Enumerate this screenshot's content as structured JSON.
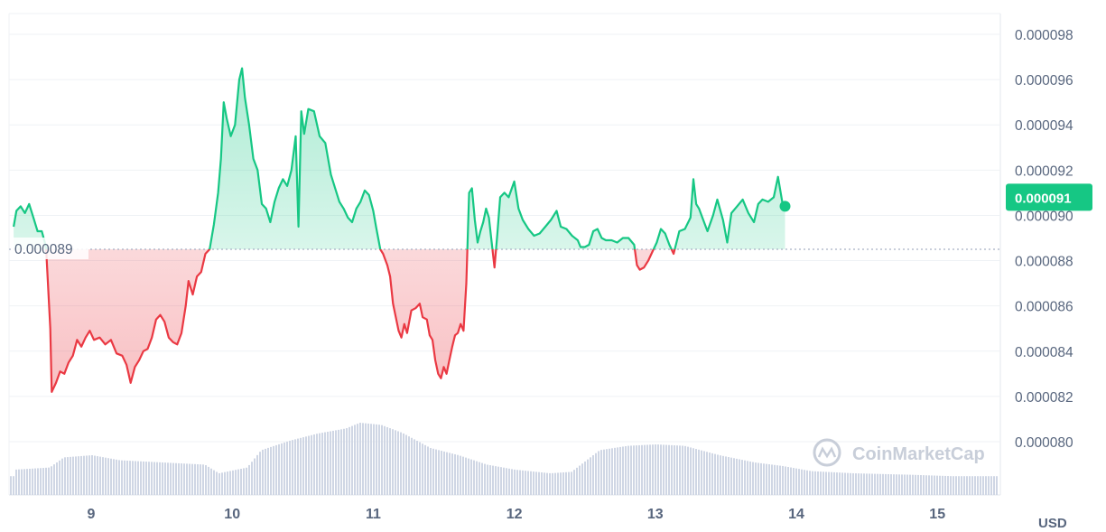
{
  "chart_data": {
    "type": "area",
    "x_tick_labels": [
      "9",
      "10",
      "11",
      "12",
      "13",
      "14",
      "15"
    ],
    "y_tick_labels": [
      "0.000098",
      "0.000096",
      "0.000094",
      "0.000092",
      "0.000090",
      "0.000088",
      "0.000086",
      "0.000084",
      "0.000082",
      "0.000080"
    ],
    "ylim": [
      7.8e-05,
      9.85e-05
    ],
    "xlim": [
      8.45,
      15.38
    ],
    "unit_label": "USD",
    "reference_value": 8.85e-05,
    "reference_label": "0.000089",
    "current_price_label": "0.000091",
    "current_price": 9.08e-05,
    "watermark": "CoinMarketCap",
    "colors": {
      "up": "#16c784",
      "down": "#ea3943",
      "volume": "#cfd6e4",
      "grid": "#eff2f5",
      "axis_text": "#58667e"
    },
    "price_series": [
      [
        8.45,
        8.95e-05
      ],
      [
        8.47,
        9.02e-05
      ],
      [
        8.5,
        9.04e-05
      ],
      [
        8.53,
        9.01e-05
      ],
      [
        8.56,
        9.05e-05
      ],
      [
        8.59,
        8.99e-05
      ],
      [
        8.62,
        8.93e-05
      ],
      [
        8.65,
        8.93e-05
      ],
      [
        8.68,
        8.86e-05
      ],
      [
        8.71,
        8.5e-05
      ],
      [
        8.72,
        8.22e-05
      ],
      [
        8.75,
        8.26e-05
      ],
      [
        8.78,
        8.31e-05
      ],
      [
        8.81,
        8.3e-05
      ],
      [
        8.84,
        8.35e-05
      ],
      [
        8.87,
        8.38e-05
      ],
      [
        8.9,
        8.45e-05
      ],
      [
        8.93,
        8.42e-05
      ],
      [
        8.96,
        8.46e-05
      ],
      [
        8.99,
        8.49e-05
      ],
      [
        9.02,
        8.45e-05
      ],
      [
        9.06,
        8.46e-05
      ],
      [
        9.1,
        8.43e-05
      ],
      [
        9.14,
        8.45e-05
      ],
      [
        9.18,
        8.39e-05
      ],
      [
        9.22,
        8.38e-05
      ],
      [
        9.25,
        8.34e-05
      ],
      [
        9.28,
        8.26e-05
      ],
      [
        9.31,
        8.33e-05
      ],
      [
        9.34,
        8.36e-05
      ],
      [
        9.37,
        8.4e-05
      ],
      [
        9.4,
        8.41e-05
      ],
      [
        9.43,
        8.46e-05
      ],
      [
        9.46,
        8.54e-05
      ],
      [
        9.49,
        8.56e-05
      ],
      [
        9.52,
        8.53e-05
      ],
      [
        9.55,
        8.46e-05
      ],
      [
        9.58,
        8.44e-05
      ],
      [
        9.61,
        8.43e-05
      ],
      [
        9.64,
        8.48e-05
      ],
      [
        9.67,
        8.6e-05
      ],
      [
        9.69,
        8.71e-05
      ],
      [
        9.72,
        8.65e-05
      ],
      [
        9.75,
        8.73e-05
      ],
      [
        9.78,
        8.75e-05
      ],
      [
        9.81,
        8.83e-05
      ],
      [
        9.84,
        8.85e-05
      ],
      [
        9.87,
        8.96e-05
      ],
      [
        9.9,
        9.1e-05
      ],
      [
        9.92,
        9.25e-05
      ],
      [
        9.94,
        9.5e-05
      ],
      [
        9.96,
        9.43e-05
      ],
      [
        9.99,
        9.35e-05
      ],
      [
        10.02,
        9.4e-05
      ],
      [
        10.05,
        9.6e-05
      ],
      [
        10.07,
        9.65e-05
      ],
      [
        10.09,
        9.52e-05
      ],
      [
        10.12,
        9.4e-05
      ],
      [
        10.15,
        9.25e-05
      ],
      [
        10.18,
        9.2e-05
      ],
      [
        10.21,
        9.05e-05
      ],
      [
        10.24,
        9.03e-05
      ],
      [
        10.27,
        8.97e-05
      ],
      [
        10.3,
        9.06e-05
      ],
      [
        10.33,
        9.12e-05
      ],
      [
        10.36,
        9.16e-05
      ],
      [
        10.39,
        9.13e-05
      ],
      [
        10.42,
        9.2e-05
      ],
      [
        10.45,
        9.35e-05
      ],
      [
        10.47,
        8.95e-05
      ],
      [
        10.49,
        9.46e-05
      ],
      [
        10.51,
        9.36e-05
      ],
      [
        10.54,
        9.47e-05
      ],
      [
        10.58,
        9.46e-05
      ],
      [
        10.62,
        9.35e-05
      ],
      [
        10.66,
        9.32e-05
      ],
      [
        10.7,
        9.18e-05
      ],
      [
        10.73,
        9.12e-05
      ],
      [
        10.76,
        9.06e-05
      ],
      [
        10.79,
        9.03e-05
      ],
      [
        10.82,
        8.99e-05
      ],
      [
        10.85,
        8.97e-05
      ],
      [
        10.88,
        9.03e-05
      ],
      [
        10.91,
        9.06e-05
      ],
      [
        10.94,
        9.11e-05
      ],
      [
        10.97,
        9.09e-05
      ],
      [
        11.0,
        9.02e-05
      ],
      [
        11.02,
        8.95e-05
      ],
      [
        11.05,
        8.85e-05
      ],
      [
        11.07,
        8.83e-05
      ],
      [
        11.1,
        8.78e-05
      ],
      [
        11.12,
        8.73e-05
      ],
      [
        11.14,
        8.61e-05
      ],
      [
        11.16,
        8.55e-05
      ],
      [
        11.18,
        8.49e-05
      ],
      [
        11.2,
        8.46e-05
      ],
      [
        11.22,
        8.52e-05
      ],
      [
        11.24,
        8.48e-05
      ],
      [
        11.27,
        8.58e-05
      ],
      [
        11.3,
        8.59e-05
      ],
      [
        11.33,
        8.61e-05
      ],
      [
        11.35,
        8.55e-05
      ],
      [
        11.38,
        8.54e-05
      ],
      [
        11.4,
        8.47e-05
      ],
      [
        11.42,
        8.45e-05
      ],
      [
        11.44,
        8.36e-05
      ],
      [
        11.46,
        8.3e-05
      ],
      [
        11.48,
        8.28e-05
      ],
      [
        11.5,
        8.33e-05
      ],
      [
        11.52,
        8.3e-05
      ],
      [
        11.54,
        8.36e-05
      ],
      [
        11.56,
        8.42e-05
      ],
      [
        11.58,
        8.47e-05
      ],
      [
        11.6,
        8.48e-05
      ],
      [
        11.62,
        8.52e-05
      ],
      [
        11.64,
        8.49e-05
      ],
      [
        11.66,
        8.7e-05
      ],
      [
        11.68,
        9.1e-05
      ],
      [
        11.7,
        9.12e-05
      ],
      [
        11.72,
        8.98e-05
      ],
      [
        11.74,
        8.88e-05
      ],
      [
        11.76,
        8.93e-05
      ],
      [
        11.78,
        8.97e-05
      ],
      [
        11.8,
        9.03e-05
      ],
      [
        11.82,
        8.99e-05
      ],
      [
        11.84,
        8.88e-05
      ],
      [
        11.86,
        8.77e-05
      ],
      [
        11.88,
        8.92e-05
      ],
      [
        11.9,
        9.08e-05
      ],
      [
        11.93,
        9.1e-05
      ],
      [
        11.96,
        9.08e-05
      ],
      [
        12.0,
        9.15e-05
      ],
      [
        12.03,
        9.03e-05
      ],
      [
        12.06,
        8.98e-05
      ],
      [
        12.1,
        8.94e-05
      ],
      [
        12.14,
        8.91e-05
      ],
      [
        12.18,
        8.92e-05
      ],
      [
        12.22,
        8.95e-05
      ],
      [
        12.26,
        8.98e-05
      ],
      [
        12.3,
        9.02e-05
      ],
      [
        12.33,
        8.95e-05
      ],
      [
        12.37,
        8.94e-05
      ],
      [
        12.41,
        8.91e-05
      ],
      [
        12.45,
        8.89e-05
      ],
      [
        12.47,
        8.86e-05
      ],
      [
        12.5,
        8.86e-05
      ],
      [
        12.53,
        8.87e-05
      ],
      [
        12.56,
        8.93e-05
      ],
      [
        12.59,
        8.94e-05
      ],
      [
        12.62,
        8.9e-05
      ],
      [
        12.65,
        8.89e-05
      ],
      [
        12.69,
        8.89e-05
      ],
      [
        12.73,
        8.88e-05
      ],
      [
        12.77,
        8.9e-05
      ],
      [
        12.81,
        8.9e-05
      ],
      [
        12.85,
        8.87e-05
      ],
      [
        12.87,
        8.78e-05
      ],
      [
        12.89,
        8.76e-05
      ],
      [
        12.92,
        8.77e-05
      ],
      [
        12.95,
        8.8e-05
      ],
      [
        12.98,
        8.84e-05
      ],
      [
        13.01,
        8.88e-05
      ],
      [
        13.04,
        8.94e-05
      ],
      [
        13.07,
        8.92e-05
      ],
      [
        13.1,
        8.87e-05
      ],
      [
        13.13,
        8.83e-05
      ],
      [
        13.17,
        8.93e-05
      ],
      [
        13.21,
        8.94e-05
      ],
      [
        13.25,
        8.99e-05
      ],
      [
        13.27,
        9.16e-05
      ],
      [
        13.29,
        9.05e-05
      ],
      [
        13.31,
        9.03e-05
      ],
      [
        13.34,
        8.98e-05
      ],
      [
        13.37,
        8.93e-05
      ],
      [
        13.41,
        9e-05
      ],
      [
        13.44,
        9.07e-05
      ],
      [
        13.48,
        8.98e-05
      ],
      [
        13.51,
        8.88e-05
      ],
      [
        13.54,
        9.01e-05
      ],
      [
        13.58,
        9.04e-05
      ],
      [
        13.62,
        9.07e-05
      ],
      [
        13.66,
        9.01e-05
      ],
      [
        13.7,
        8.97e-05
      ],
      [
        13.73,
        9.05e-05
      ],
      [
        13.76,
        9.07e-05
      ],
      [
        13.8,
        9.06e-05
      ],
      [
        13.84,
        9.08e-05
      ],
      [
        13.87,
        9.17e-05
      ],
      [
        13.9,
        9.06e-05
      ],
      [
        13.92,
        9.04e-05
      ]
    ],
    "volume_series": [
      [
        8.45,
        0.35
      ],
      [
        8.7,
        0.38
      ],
      [
        8.8,
        0.52
      ],
      [
        9.0,
        0.55
      ],
      [
        9.2,
        0.48
      ],
      [
        9.5,
        0.45
      ],
      [
        9.8,
        0.42
      ],
      [
        9.9,
        0.3
      ],
      [
        10.1,
        0.38
      ],
      [
        10.2,
        0.62
      ],
      [
        10.4,
        0.75
      ],
      [
        10.6,
        0.85
      ],
      [
        10.8,
        0.92
      ],
      [
        10.9,
        1.0
      ],
      [
        11.05,
        0.97
      ],
      [
        11.2,
        0.86
      ],
      [
        11.4,
        0.65
      ],
      [
        11.6,
        0.55
      ],
      [
        11.8,
        0.42
      ],
      [
        12.0,
        0.35
      ],
      [
        12.25,
        0.3
      ],
      [
        12.4,
        0.32
      ],
      [
        12.6,
        0.62
      ],
      [
        12.8,
        0.68
      ],
      [
        13.0,
        0.7
      ],
      [
        13.2,
        0.68
      ],
      [
        13.45,
        0.55
      ],
      [
        13.7,
        0.45
      ],
      [
        13.9,
        0.4
      ],
      [
        14.1,
        0.33
      ],
      [
        14.4,
        0.3
      ],
      [
        14.8,
        0.28
      ],
      [
        15.1,
        0.26
      ],
      [
        15.38,
        0.26
      ]
    ]
  }
}
